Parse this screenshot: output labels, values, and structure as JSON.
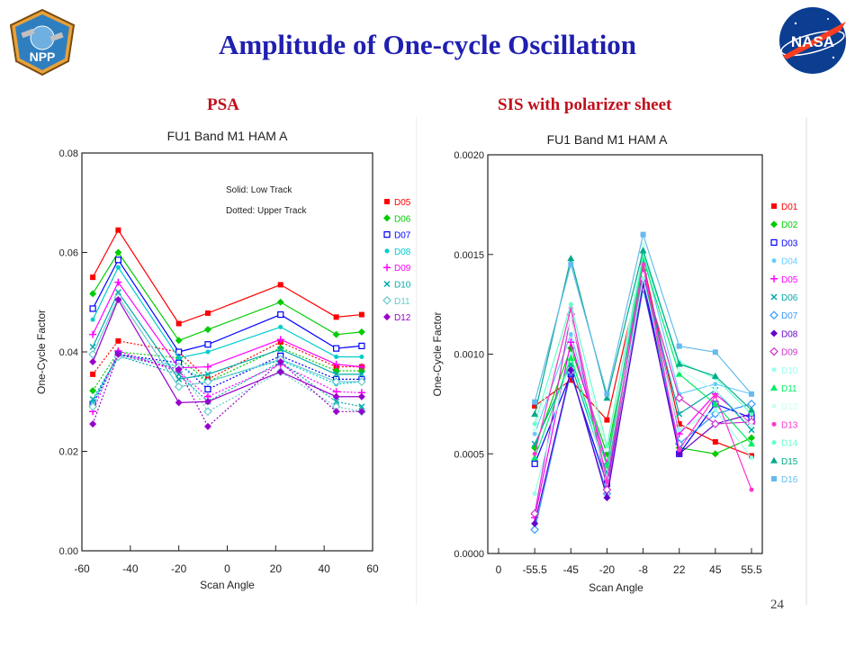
{
  "slide": {
    "title": "Amplitude of One-cycle Oscillation",
    "subtitle_left": "PSA",
    "subtitle_right": "SIS with polarizer sheet",
    "page_number": "24",
    "logo_left_text": "NPP",
    "logo_right_text": "NASA"
  },
  "colors": {
    "title": "#1f1fb0",
    "subtitle": "#c0101c",
    "nasa_blue": "#0b3d91",
    "nasa_red": "#fc3d21"
  },
  "chart_data": [
    {
      "type": "line",
      "title": "FU1 Band M1 HAM A",
      "xlabel": "Scan Angle",
      "ylabel": "One-Cycle Factor",
      "xlim": [
        -60,
        60
      ],
      "ylim": [
        0,
        0.08
      ],
      "xticks": [
        -60,
        -40,
        -20,
        0,
        20,
        40,
        60
      ],
      "yticks": [
        "0.00",
        "0.02",
        "0.04",
        "0.06",
        "0.08"
      ],
      "annotations": [
        "Solid: Low Track",
        "Dotted: Upper Track"
      ],
      "legend_position": "right",
      "x": [
        -55.5,
        -45,
        -20,
        -8,
        22,
        45,
        55.5
      ],
      "series": [
        {
          "name": "D05",
          "color": "#ff0000",
          "marker": "square",
          "low": [
            0.055,
            0.0645,
            0.0457,
            0.0478,
            0.0535,
            0.047,
            0.0475
          ],
          "upper": [
            0.0355,
            0.0422,
            0.04,
            0.0345,
            0.042,
            0.037,
            0.037
          ]
        },
        {
          "name": "D06",
          "color": "#00cc00",
          "marker": "diamond",
          "low": [
            0.0517,
            0.06,
            0.0423,
            0.0445,
            0.05,
            0.0435,
            0.044
          ],
          "upper": [
            0.0322,
            0.04,
            0.0388,
            0.034,
            0.0408,
            0.0362,
            0.0362
          ]
        },
        {
          "name": "D07",
          "color": "#0000ff",
          "marker": "open-square",
          "low": [
            0.0487,
            0.0585,
            0.04,
            0.0415,
            0.0475,
            0.0407,
            0.0412
          ],
          "upper": [
            0.0295,
            0.0395,
            0.0378,
            0.0325,
            0.0392,
            0.0345,
            0.0345
          ]
        },
        {
          "name": "D08",
          "color": "#00cccc",
          "marker": "dot",
          "low": [
            0.0465,
            0.057,
            0.0388,
            0.04,
            0.045,
            0.039,
            0.039
          ],
          "upper": [
            0.03,
            0.0395,
            0.0372,
            0.034,
            0.0383,
            0.0335,
            0.034
          ]
        },
        {
          "name": "D09",
          "color": "#ff00ff",
          "marker": "plus",
          "low": [
            0.0435,
            0.054,
            0.0368,
            0.037,
            0.0425,
            0.0375,
            0.037
          ],
          "upper": [
            0.028,
            0.0402,
            0.036,
            0.031,
            0.0375,
            0.032,
            0.0318
          ]
        },
        {
          "name": "D10",
          "color": "#00aaaa",
          "marker": "x",
          "low": [
            0.041,
            0.052,
            0.0345,
            0.0355,
            0.0405,
            0.0355,
            0.0355
          ],
          "upper": [
            0.0305,
            0.0392,
            0.0355,
            0.03,
            0.038,
            0.03,
            0.029
          ]
        },
        {
          "name": "D11",
          "color": "#66cccc",
          "marker": "open-diamond",
          "low": [
            0.0395,
            0.051,
            0.033,
            0.034,
            0.0385,
            0.034,
            0.034
          ],
          "upper": [
            0.029,
            0.039,
            0.037,
            0.028,
            0.036,
            0.029,
            0.028
          ]
        },
        {
          "name": "D12",
          "color": "#9900cc",
          "marker": "diamond",
          "low": [
            0.038,
            0.0505,
            0.0298,
            0.03,
            0.036,
            0.031,
            0.031
          ],
          "upper": [
            0.0255,
            0.0395,
            0.0365,
            0.025,
            0.038,
            0.028,
            0.028
          ]
        }
      ]
    },
    {
      "type": "line",
      "title": "FU1 Band M1 HAM A",
      "xlabel": "Scan Angle",
      "ylabel": "One-Cycle Factor",
      "ylim": [
        0,
        0.002
      ],
      "categories": [
        "-55.5",
        "-45",
        "-20",
        "-8",
        "22",
        "45",
        "55.5"
      ],
      "xtick_labels": [
        "0",
        "-55.5",
        "-45",
        "-20",
        "-8",
        "22",
        "45",
        "55.5"
      ],
      "yticks": [
        "0.0000",
        "0.0005",
        "0.0010",
        "0.0015",
        "0.0020"
      ],
      "legend_position": "right",
      "series": [
        {
          "name": "D01",
          "color": "#ff0000",
          "marker": "square",
          "values": [
            0.00074,
            0.00087,
            0.00067,
            0.00146,
            0.00065,
            0.00056,
            0.00049
          ]
        },
        {
          "name": "D02",
          "color": "#00cc00",
          "marker": "diamond",
          "values": [
            0.00053,
            0.00103,
            0.0005,
            0.00142,
            0.00053,
            0.0005,
            0.00058
          ]
        },
        {
          "name": "D03",
          "color": "#0000ff",
          "marker": "open-square",
          "values": [
            0.00045,
            0.0009,
            0.00035,
            0.00138,
            0.0005,
            0.00075,
            0.00068
          ]
        },
        {
          "name": "D04",
          "color": "#66ccff",
          "marker": "dot",
          "values": [
            0.0006,
            0.0011,
            0.00045,
            0.0015,
            0.0008,
            0.00085,
            0.0008
          ]
        },
        {
          "name": "D05",
          "color": "#ff00ff",
          "marker": "plus",
          "values": [
            0.00018,
            0.00106,
            0.00045,
            0.00145,
            0.0006,
            0.0008,
            0.00065
          ]
        },
        {
          "name": "D06",
          "color": "#00aaaa",
          "marker": "x",
          "values": [
            0.00055,
            0.00095,
            0.0004,
            0.0014,
            0.0007,
            0.00082,
            0.00062
          ]
        },
        {
          "name": "D07",
          "color": "#3399ff",
          "marker": "open-diamond",
          "values": [
            0.00012,
            0.00091,
            0.0003,
            0.00133,
            0.00055,
            0.0007,
            0.00075
          ]
        },
        {
          "name": "D08",
          "color": "#6600cc",
          "marker": "diamond",
          "values": [
            0.00015,
            0.00092,
            0.00028,
            0.00135,
            0.0005,
            0.00065,
            0.0007
          ]
        },
        {
          "name": "D09",
          "color": "#cc33cc",
          "marker": "open-diamond",
          "values": [
            0.0002,
            0.0012,
            0.00032,
            0.0014,
            0.00078,
            0.00065,
            0.00066
          ]
        },
        {
          "name": "D10",
          "color": "#99ffee",
          "marker": "dot",
          "values": [
            0.0003,
            0.001,
            0.00038,
            0.00138,
            0.00062,
            0.00072,
            0.00048
          ]
        },
        {
          "name": "D11",
          "color": "#00ee66",
          "marker": "triangle",
          "values": [
            0.00048,
            0.00098,
            0.00044,
            0.00148,
            0.0009,
            0.00075,
            0.00055
          ]
        },
        {
          "name": "D12",
          "color": "#ccffee",
          "marker": "dot",
          "values": [
            0.00062,
            0.00118,
            0.00052,
            0.00155,
            0.00092,
            0.00082,
            0.00064
          ]
        },
        {
          "name": "D13",
          "color": "#ff33cc",
          "marker": "dot",
          "values": [
            0.0005,
            0.00123,
            0.00036,
            0.00145,
            0.00052,
            0.00079,
            0.00032
          ]
        },
        {
          "name": "D14",
          "color": "#66ffcc",
          "marker": "dot",
          "values": [
            0.00065,
            0.00125,
            0.00054,
            0.0015,
            0.00096,
            0.00088,
            0.0007
          ]
        },
        {
          "name": "D15",
          "color": "#00aa88",
          "marker": "triangle",
          "values": [
            0.0007,
            0.00148,
            0.00078,
            0.00152,
            0.00095,
            0.00089,
            0.00072
          ]
        },
        {
          "name": "D16",
          "color": "#66bbee",
          "marker": "square",
          "values": [
            0.00076,
            0.00145,
            0.0008,
            0.0016,
            0.00104,
            0.00101,
            0.0008
          ]
        }
      ]
    }
  ]
}
